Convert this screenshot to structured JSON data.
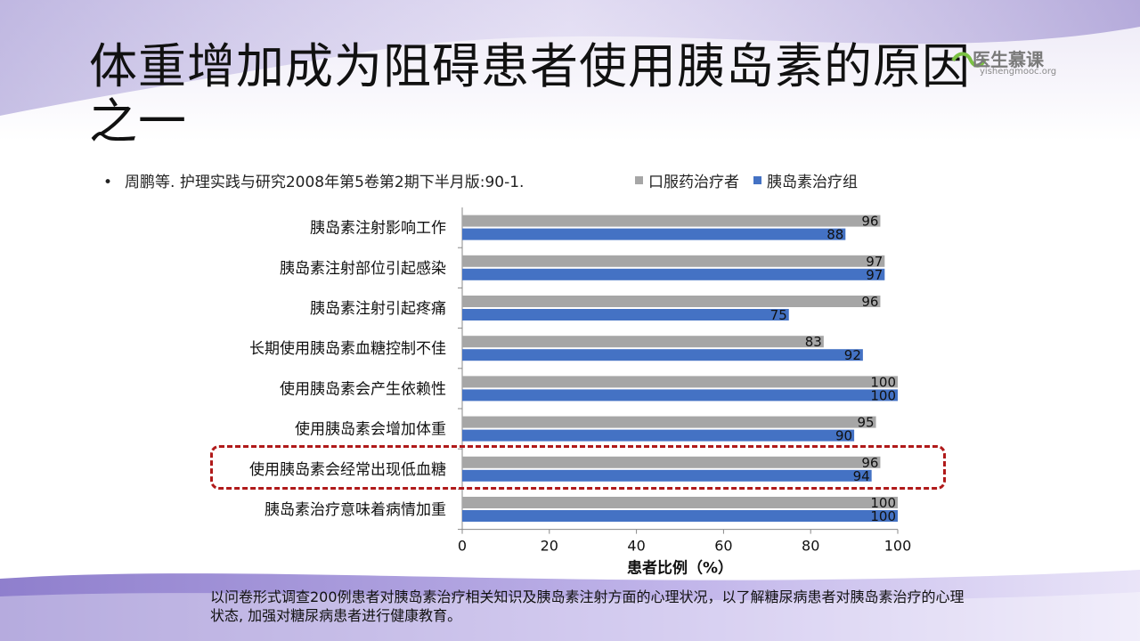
{
  "title_line1": "体重增加成为阻碍患者使用胰岛素的原因",
  "title_line2": "之一",
  "logo": {
    "text": "医生慕课",
    "sub": "yishengmooc.org"
  },
  "reference": "周鹏等. 护理实践与研究2008年第5卷第2期下半月版:90-1.",
  "legend": {
    "oral": "口服药治疗者",
    "insulin": "胰岛素治疗组"
  },
  "note": "以问卷形式调查200例患者对胰岛素治疗相关知识及胰岛素注射方面的心理状况，以了解糖尿病患者对胰岛素治疗的心理状态, 加强对糖尿病患者进行健康教育。",
  "colors": {
    "oral": "#a6a6a6",
    "insulin": "#4472c4",
    "highlight": "#b01a1a"
  },
  "chart_data": {
    "type": "bar",
    "orientation": "horizontal",
    "categories": [
      "胰岛素注射影响工作",
      "胰岛素注射部位引起感染",
      "胰岛素注射引起疼痛",
      "长期使用胰岛素血糖控制不佳",
      "使用胰岛素会产生依赖性",
      "使用胰岛素会增加体重",
      "使用胰岛素会经常出现低血糖",
      "胰岛素治疗意味着病情加重"
    ],
    "series": [
      {
        "name": "口服药治疗者",
        "values": [
          96,
          97,
          96,
          83,
          100,
          95,
          96,
          100
        ]
      },
      {
        "name": "胰岛素治疗组",
        "values": [
          88,
          97,
          75,
          92,
          100,
          90,
          94,
          100
        ]
      }
    ],
    "xlabel": "患者比例（%）",
    "xlim": [
      0,
      100
    ],
    "xticks": [
      0,
      20,
      40,
      60,
      80,
      100
    ],
    "legend_position": "top",
    "highlighted_category": "使用胰岛素会经常出现低血糖"
  }
}
